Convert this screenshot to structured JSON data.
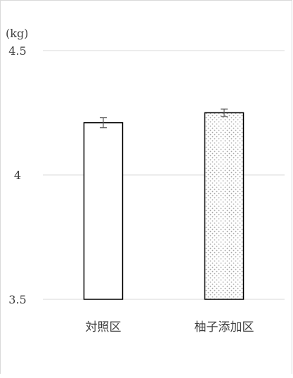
{
  "chart_data": {
    "type": "bar",
    "unit_label": "(kg)",
    "categories": [
      "対照区",
      "柚子添加区"
    ],
    "values": [
      4.21,
      4.25
    ],
    "errors": [
      0.02,
      0.015
    ],
    "ylim": [
      3.5,
      4.5
    ],
    "y_ticks": [
      "3.5",
      "4",
      "4.5"
    ],
    "grid": true,
    "bar_fills": [
      "solid-white",
      "dotted"
    ],
    "colors": {
      "bar_edge": "#000000",
      "grid": "#d9d9d9",
      "error_bar": "#595959",
      "dot": "#a6a6a6"
    }
  }
}
